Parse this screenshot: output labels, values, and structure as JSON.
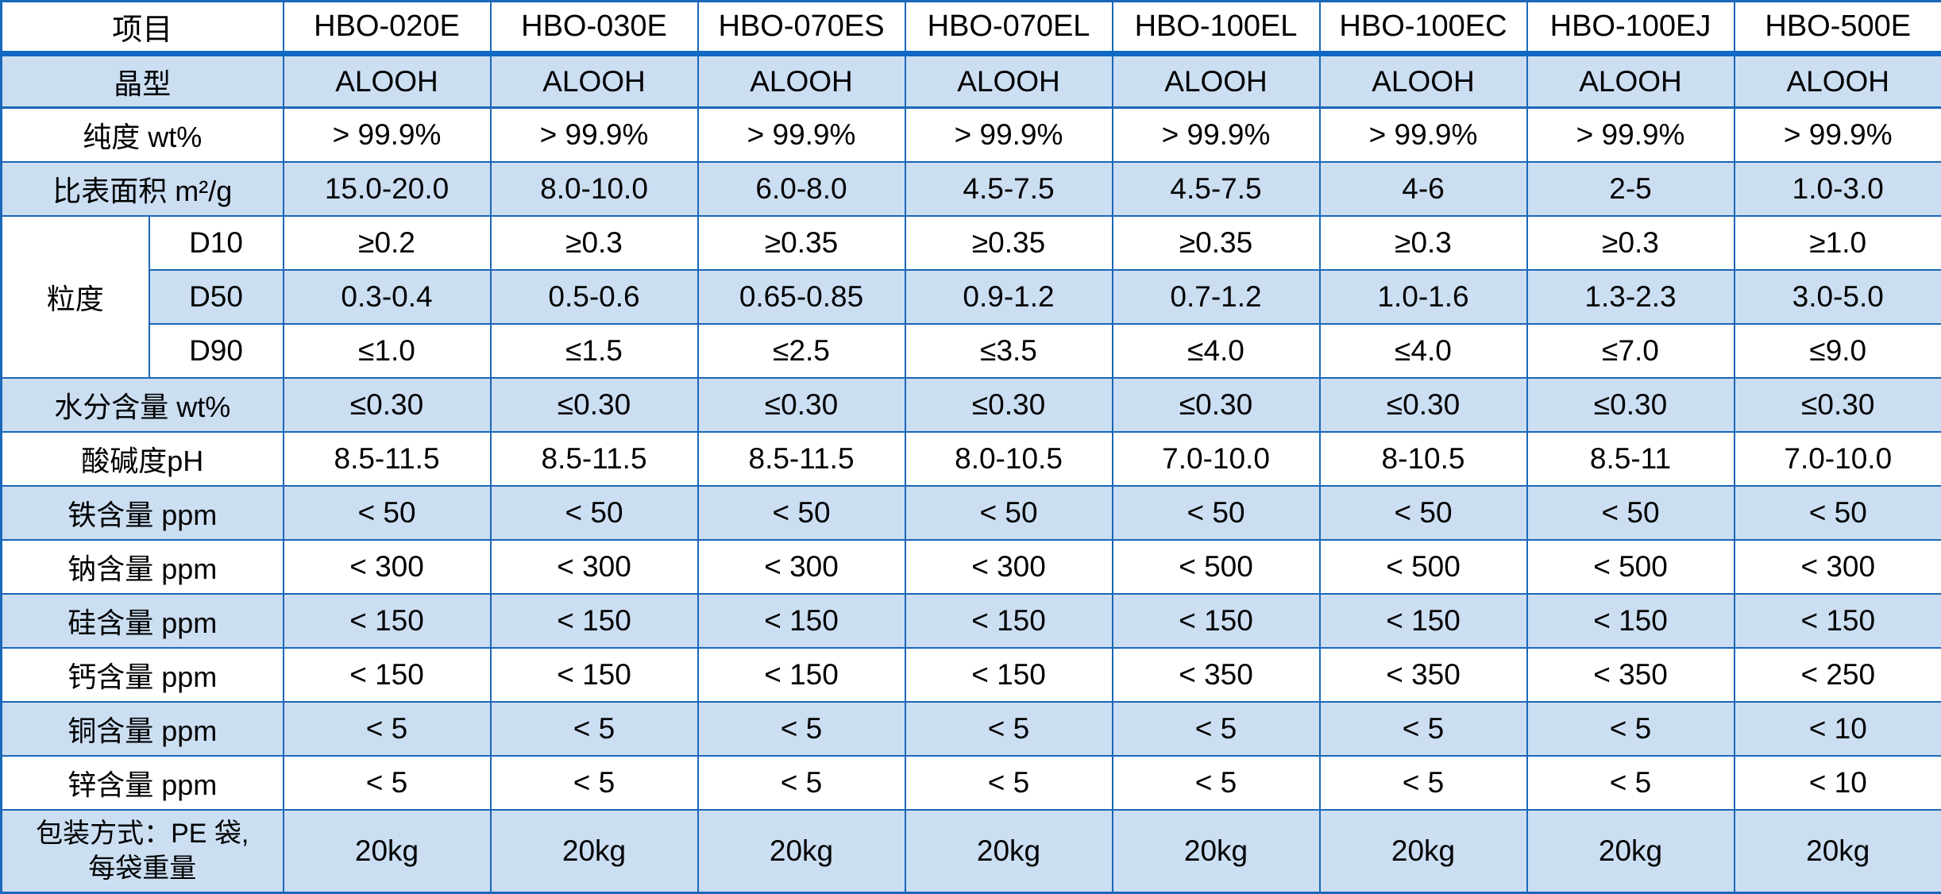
{
  "table": {
    "colors": {
      "row_blue_fill": "#cbdef2",
      "border_blue": "#1b67b8",
      "header_separator_blue": "#0f68c4",
      "text": "#000000"
    },
    "header": {
      "label": "项目",
      "columns": [
        "HBO-020E",
        "HBO-030E",
        "HBO-070ES",
        "HBO-070EL",
        "HBO-100EL",
        "HBO-100EC",
        "HBO-100EJ",
        "HBO-500E"
      ]
    },
    "group_label": "粒度",
    "rows": [
      {
        "label": "晶型",
        "shade": "blue",
        "crystal": true,
        "values": [
          "ALOOH",
          "ALOOH",
          "ALOOH",
          "ALOOH",
          "ALOOH",
          "ALOOH",
          "ALOOH",
          "ALOOH"
        ]
      },
      {
        "label": "纯度 wt%",
        "shade": "white",
        "values": [
          "> 99.9%",
          "> 99.9%",
          "> 99.9%",
          "> 99.9%",
          "> 99.9%",
          "> 99.9%",
          "> 99.9%",
          "> 99.9%"
        ]
      },
      {
        "label": "比表面积 m²/g",
        "shade": "blue",
        "values": [
          "15.0-20.0",
          "8.0-10.0",
          "6.0-8.0",
          "4.5-7.5",
          "4.5-7.5",
          "4-6",
          "2-5",
          "1.0-3.0"
        ]
      },
      {
        "label": "D10",
        "shade": "white",
        "group": true,
        "values": [
          "≥0.2",
          "≥0.3",
          "≥0.35",
          "≥0.35",
          "≥0.35",
          "≥0.3",
          "≥0.3",
          "≥1.0"
        ]
      },
      {
        "label": "D50",
        "shade": "blue",
        "group": true,
        "values": [
          "0.3-0.4",
          "0.5-0.6",
          "0.65-0.85",
          "0.9-1.2",
          "0.7-1.2",
          "1.0-1.6",
          "1.3-2.3",
          "3.0-5.0"
        ]
      },
      {
        "label": "D90",
        "shade": "white",
        "group": true,
        "values": [
          "≤1.0",
          "≤1.5",
          "≤2.5",
          "≤3.5",
          "≤4.0",
          "≤4.0",
          "≤7.0",
          "≤9.0"
        ]
      },
      {
        "label": "水分含量 wt%",
        "shade": "blue",
        "values": [
          "≤0.30",
          "≤0.30",
          "≤0.30",
          "≤0.30",
          "≤0.30",
          "≤0.30",
          "≤0.30",
          "≤0.30"
        ]
      },
      {
        "label": "酸碱度pH",
        "shade": "white",
        "values": [
          "8.5-11.5",
          "8.5-11.5",
          "8.5-11.5",
          "8.0-10.5",
          "7.0-10.0",
          "8-10.5",
          "8.5-11",
          "7.0-10.0"
        ]
      },
      {
        "label": "铁含量 ppm",
        "shade": "blue",
        "values": [
          "< 50",
          "< 50",
          "< 50",
          "< 50",
          "< 50",
          "< 50",
          "< 50",
          "< 50"
        ]
      },
      {
        "label": "钠含量 ppm",
        "shade": "white",
        "values": [
          "< 300",
          "< 300",
          "< 300",
          "< 300",
          "< 500",
          "< 500",
          "< 500",
          "< 300"
        ]
      },
      {
        "label": "硅含量 ppm",
        "shade": "blue",
        "values": [
          "< 150",
          "< 150",
          "< 150",
          "< 150",
          "< 150",
          "< 150",
          "< 150",
          "< 150"
        ]
      },
      {
        "label": "钙含量 ppm",
        "shade": "white",
        "values": [
          "< 150",
          "< 150",
          "< 150",
          "< 150",
          "< 350",
          "< 350",
          "< 350",
          "< 250"
        ]
      },
      {
        "label": "铜含量 ppm",
        "shade": "blue",
        "values": [
          "< 5",
          "< 5",
          "< 5",
          "< 5",
          "< 5",
          "< 5",
          "< 5",
          "< 10"
        ]
      },
      {
        "label": "锌含量 ppm",
        "shade": "white",
        "values": [
          "< 5",
          "< 5",
          "< 5",
          "< 5",
          "< 5",
          "< 5",
          "< 5",
          "< 10"
        ]
      },
      {
        "label": "包装方式：PE 袋,\n每袋重量",
        "shade": "blue",
        "tall": true,
        "values": [
          "20kg",
          "20kg",
          "20kg",
          "20kg",
          "20kg",
          "20kg",
          "20kg",
          "20kg"
        ]
      }
    ]
  }
}
